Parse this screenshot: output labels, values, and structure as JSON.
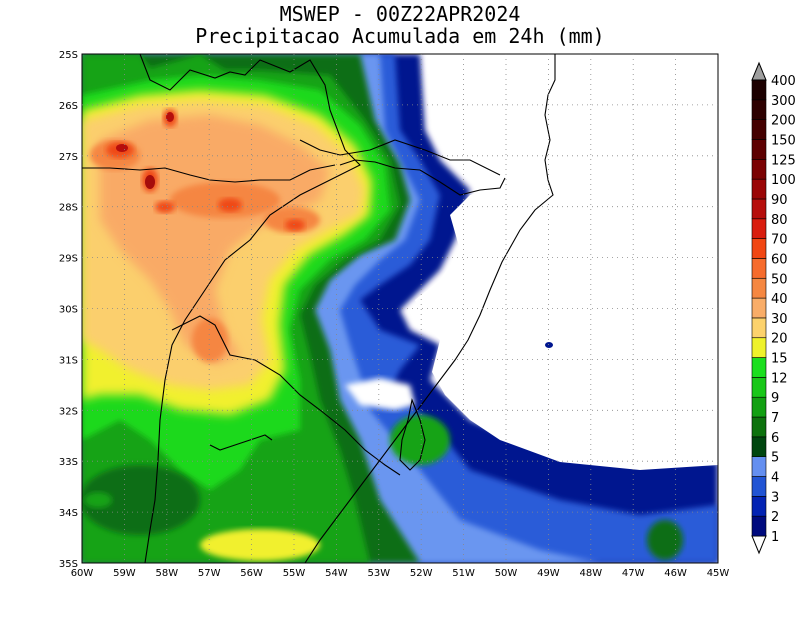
{
  "title": {
    "line1": "MSWEP - 00Z22APR2024",
    "line2": "Precipitacao Acumulada em 24h (mm)"
  },
  "map": {
    "lon_range": [
      -60,
      -45
    ],
    "lat_range": [
      -35,
      -25
    ],
    "lat_labels": [
      "25S",
      "26S",
      "27S",
      "28S",
      "29S",
      "30S",
      "31S",
      "32S",
      "33S",
      "34S",
      "35S"
    ],
    "lon_labels": [
      "60W",
      "59W",
      "58W",
      "57W",
      "56W",
      "55W",
      "54W",
      "53W",
      "52W",
      "51W",
      "50W",
      "49W",
      "48W",
      "47W",
      "46W",
      "45W"
    ],
    "grid": "dotted",
    "background_color": "#ffffff"
  },
  "colorbar": {
    "units": "mm",
    "levels": [
      "1",
      "2",
      "3",
      "4",
      "5",
      "6",
      "7",
      "9",
      "12",
      "15",
      "20",
      "30",
      "40",
      "50",
      "60",
      "70",
      "80",
      "90",
      "100",
      "125",
      "150",
      "200",
      "300",
      "400"
    ],
    "colors": [
      "#ffffff",
      "#000b7e",
      "#0323b3",
      "#2154d4",
      "#648ff0",
      "#00460f",
      "#0d720d",
      "#12a012",
      "#19c719",
      "#1bdf1f",
      "#eff22b",
      "#fcd26c",
      "#f9ad68",
      "#f58741",
      "#f66b2c",
      "#f14612",
      "#d91d0e",
      "#b60e0c",
      "#9a0506",
      "#7b0203",
      "#5d0001",
      "#440000",
      "#2d0000",
      "#1c0000",
      "#9f9f9f"
    ]
  }
}
